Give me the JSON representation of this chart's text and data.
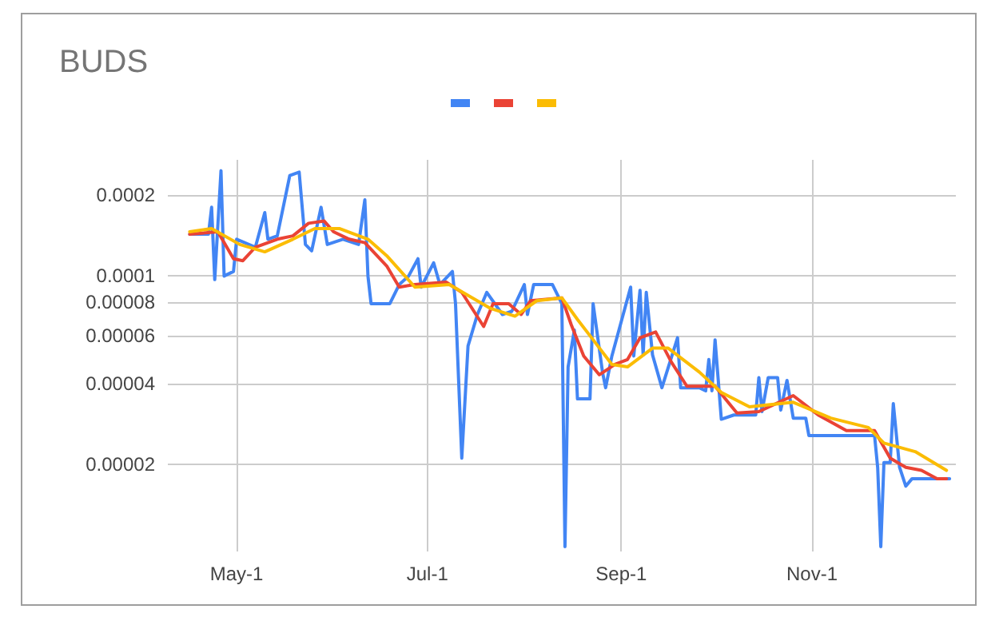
{
  "chart_data": {
    "type": "line",
    "title": "BUDS",
    "xlim": [
      "--04-09",
      "--12-17"
    ],
    "xticks": [
      {
        "value": "--05-01",
        "label": "May-1"
      },
      {
        "value": "--07-01",
        "label": "Jul-1"
      },
      {
        "value": "--09-01",
        "label": "Sep-1"
      },
      {
        "value": "--11-01",
        "label": "Nov-1"
      }
    ],
    "ylim": [
      9.5e-06,
      0.00027
    ],
    "yticks": [
      {
        "value": 2e-05,
        "label": "0.00002"
      },
      {
        "value": 4e-05,
        "label": "0.00004"
      },
      {
        "value": 6e-05,
        "label": "0.00006"
      },
      {
        "value": 8e-05,
        "label": "0.00008"
      },
      0.0001,
      0.0002
    ],
    "log": "y",
    "grid": true,
    "marker": "none",
    "line_style": "solid",
    "series": [
      {
        "color": "#4285f4",
        "x": [
          "--04-16",
          "--04-22",
          "--04-23",
          "--04-24",
          "--04-26",
          "--04-27",
          "--04-30",
          "--05-01",
          "--05-07",
          "--05-10",
          "--05-11",
          "--05-14",
          "--05-18",
          "--05-21",
          "--05-23",
          "--05-25",
          "--05-28",
          "--05-30",
          "--06-04",
          "--06-09",
          "--06-11",
          "--06-12",
          "--06-13",
          "--06-19",
          "--06-22",
          "--06-25",
          "--06-28",
          "--06-29",
          "--07-03",
          "--07-05",
          "--07-09",
          "--07-10",
          "--07-12",
          "--07-14",
          "--07-17",
          "--07-20",
          "--07-25",
          "--07-28",
          "--08-01",
          "--08-02",
          "--08-04",
          "--08-10",
          "--08-13",
          "--08-14",
          "--08-15",
          "--08-17",
          "--08-18",
          "--08-22",
          "--08-23",
          "--08-26",
          "--08-27",
          "--08-29",
          "--09-04",
          "--09-05",
          "--09-07",
          "--09-08",
          "--09-09",
          "--09-11",
          "--09-14",
          "--09-19",
          "--09-20",
          "--09-26",
          "--09-28",
          "--09-29",
          "--09-30",
          "--10-01",
          "--10-03",
          "--10-07",
          "--10-14",
          "--10-15",
          "--10-16",
          "--10-18",
          "--10-21",
          "--10-22",
          "--10-24",
          "--10-26",
          "--10-30",
          "--10-31",
          "--11-21",
          "--11-22",
          "--11-23",
          "--11-24",
          "--11-26",
          "--11-27",
          "--11-29",
          "--12-01",
          "--12-03",
          "--12-15"
        ],
        "values": [
          0.000143,
          0.000143,
          0.00018,
          9.7e-05,
          0.000246,
          0.0001,
          0.000104,
          0.000137,
          0.000128,
          0.000172,
          0.000137,
          0.000141,
          0.000236,
          0.000243,
          0.000131,
          0.000124,
          0.00018,
          0.000131,
          0.000137,
          0.000131,
          0.000192,
          0.0001,
          7.9e-05,
          7.9e-05,
          9.3e-05,
          0.0001,
          0.000116,
          9.1e-05,
          0.000112,
          9.3e-05,
          0.000104,
          7.9e-05,
          2.11e-05,
          5.5e-05,
          7.2e-05,
          8.7e-05,
          7.2e-05,
          7.4e-05,
          9.3e-05,
          7.2e-05,
          9.3e-05,
          9.3e-05,
          7.9e-05,
          9.9e-06,
          4.6e-05,
          6.3e-05,
          3.5e-05,
          3.5e-05,
          7.9e-05,
          4.4e-05,
          3.85e-05,
          5.05e-05,
          9.1e-05,
          5.05e-05,
          8.85e-05,
          5.1e-05,
          8.7e-05,
          5.1e-05,
          3.85e-05,
          5.9e-05,
          3.85e-05,
          3.85e-05,
          3.75e-05,
          4.9e-05,
          3.75e-05,
          5.8e-05,
          2.94e-05,
          3.05e-05,
          3.05e-05,
          4.2e-05,
          3.14e-05,
          4.2e-05,
          4.2e-05,
          3.18e-05,
          4.1e-05,
          2.97e-05,
          2.97e-05,
          2.56e-05,
          2.56e-05,
          1.95e-05,
          9.9e-06,
          2.03e-05,
          2.03e-05,
          3.36e-05,
          1.95e-05,
          1.66e-05,
          1.77e-05,
          1.77e-05
        ]
      },
      {
        "color": "#ea4335",
        "x": [
          "--04-16",
          "--04-25",
          "--04-30",
          "--05-03",
          "--05-07",
          "--05-14",
          "--05-19",
          "--05-24",
          "--05-29",
          "--06-01",
          "--06-06",
          "--06-11",
          "--06-18",
          "--06-22",
          "--06-27",
          "--07-07",
          "--07-12",
          "--07-19",
          "--07-22",
          "--07-27",
          "--07-31",
          "--08-03",
          "--08-13",
          "--08-16",
          "--08-20",
          "--08-25",
          "--08-30",
          "--09-03",
          "--09-07",
          "--09-12",
          "--09-17",
          "--09-22",
          "--10-01",
          "--10-08",
          "--10-15",
          "--10-26",
          "--11-03",
          "--11-12",
          "--11-21",
          "--11-26",
          "--12-01",
          "--12-06",
          "--12-11",
          "--12-14"
        ],
        "values": [
          0.000143,
          0.000146,
          0.000116,
          0.000114,
          0.000128,
          0.000137,
          0.000141,
          0.000157,
          0.00016,
          0.000146,
          0.000137,
          0.000133,
          0.000109,
          9.1e-05,
          9.3e-05,
          9.5e-05,
          8.7e-05,
          6.5e-05,
          7.9e-05,
          7.9e-05,
          7.2e-05,
          8.1e-05,
          8.3e-05,
          6.6e-05,
          5.05e-05,
          4.3e-05,
          4.7e-05,
          4.9e-05,
          5.9e-05,
          6.2e-05,
          4.8e-05,
          3.9e-05,
          3.9e-05,
          3.1e-05,
          3.14e-05,
          3.6e-05,
          3.05e-05,
          2.67e-05,
          2.67e-05,
          2.11e-05,
          1.95e-05,
          1.9e-05,
          1.77e-05,
          1.77e-05
        ]
      },
      {
        "color": "#fbbc04",
        "x": [
          "--04-16",
          "--04-23",
          "--05-02",
          "--05-10",
          "--05-19",
          "--05-26",
          "--06-03",
          "--06-12",
          "--06-18",
          "--06-27",
          "--07-08",
          "--07-21",
          "--07-29",
          "--08-05",
          "--08-13",
          "--08-18",
          "--08-23",
          "--08-29",
          "--09-03",
          "--09-11",
          "--09-16",
          "--09-26",
          "--10-03",
          "--10-12",
          "--10-26",
          "--11-07",
          "--11-19",
          "--11-24",
          "--12-04",
          "--12-14"
        ],
        "values": [
          0.000146,
          0.00015,
          0.000131,
          0.000123,
          0.000137,
          0.00015,
          0.00015,
          0.000137,
          0.000119,
          9.1e-05,
          9.3e-05,
          7.6e-05,
          7.1e-05,
          8.1e-05,
          8.3e-05,
          6.9e-05,
          5.8e-05,
          4.7e-05,
          4.6e-05,
          5.4e-05,
          5.4e-05,
          4.4e-05,
          3.7e-05,
          3.27e-05,
          3.4e-05,
          2.97e-05,
          2.74e-05,
          2.4e-05,
          2.23e-05,
          1.9e-05
        ]
      }
    ]
  }
}
